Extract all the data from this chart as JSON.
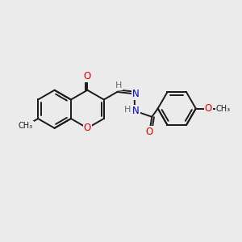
{
  "bg_color": "#ebebeb",
  "bond_color": "#1a1a1a",
  "atom_colors": {
    "O": "#e00000",
    "N": "#0000cc",
    "H": "#607070",
    "C": "#1a1a1a"
  },
  "font_size_atom": 8.5,
  "line_width": 1.4,
  "fig_size": [
    3.0,
    3.0
  ],
  "dpi": 100
}
